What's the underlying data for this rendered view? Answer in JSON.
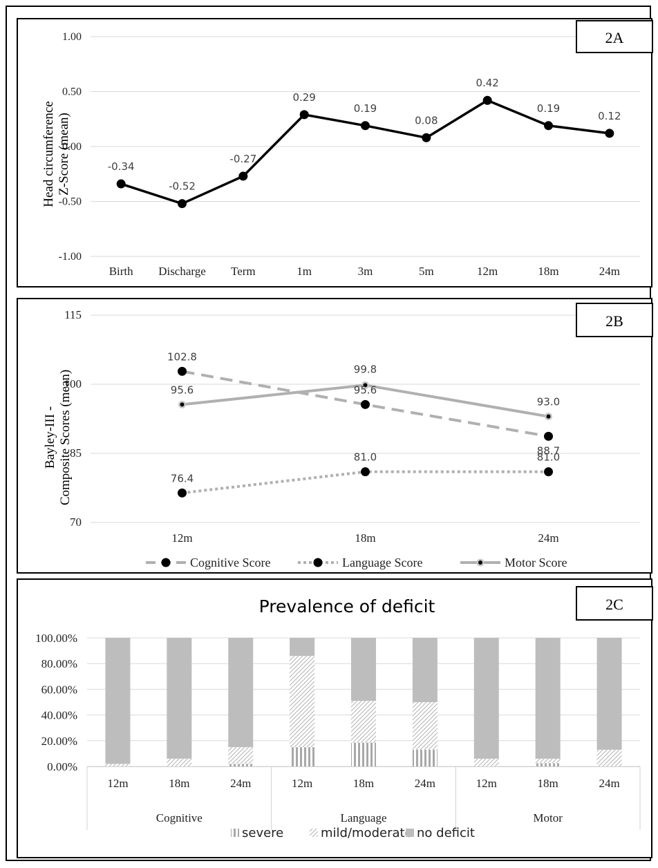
{
  "colors": {
    "lineA": "#000000",
    "cognitive": "#b0b0b0",
    "language": "#b0b0b0",
    "motor": "#b0b0b0",
    "bar_fill": "#bdbdbd",
    "grid": "#d9d9d9"
  },
  "chart_data": [
    {
      "panel_label": "2A",
      "type": "line",
      "categories": [
        "Birth",
        "Discharge",
        "Term",
        "1m",
        "3m",
        "5m",
        "12m",
        "18m",
        "24m"
      ],
      "series": [
        {
          "values": [
            -0.34,
            -0.52,
            -0.27,
            0.29,
            0.19,
            0.08,
            0.42,
            0.19,
            0.12
          ]
        }
      ],
      "value_labels": [
        "-0.34",
        "-0.52",
        "-0.27",
        "0.29",
        "0.19",
        "0.08",
        "0.42",
        "0.19",
        "0.12"
      ],
      "ylabel": [
        "Head circumference",
        "Z-Score (mean)"
      ],
      "ylim": [
        -1.0,
        1.0
      ],
      "yticks": [
        1.0,
        0.5,
        0.0,
        -0.5,
        -1.0
      ],
      "ytick_labels": [
        "1.00",
        "0.50",
        "0.00",
        "-0.50",
        "-1.00"
      ],
      "grid": true
    },
    {
      "panel_label": "2B",
      "type": "line",
      "categories": [
        "12m",
        "18m",
        "24m"
      ],
      "series": [
        {
          "name": "Cognitive Score",
          "values": [
            102.8,
            95.6,
            88.7
          ],
          "labels": [
            "102.8",
            "95.6",
            "88.7"
          ],
          "style": "dashed"
        },
        {
          "name": "Language Score",
          "values": [
            76.4,
            81.0,
            81.0
          ],
          "labels": [
            "76.4",
            "81.0",
            "81.0"
          ],
          "style": "dotted"
        },
        {
          "name": "Motor Score",
          "values": [
            95.6,
            99.8,
            93.0
          ],
          "labels": [
            "95.6",
            "99.8",
            "93.0"
          ],
          "style": "solid"
        }
      ],
      "ylabel": [
        "Bayley-III -",
        "Composite Scores (mean)"
      ],
      "ylim": [
        70,
        115
      ],
      "yticks": [
        115,
        100,
        85,
        70
      ],
      "ytick_labels": [
        "115",
        "100",
        "85",
        "70"
      ],
      "legend": "bottom",
      "grid": true
    },
    {
      "panel_label": "2C",
      "type": "bar",
      "stacked": true,
      "title": "Prevalence of deficit",
      "groups": [
        "Cognitive",
        "Language",
        "Motor"
      ],
      "categories": [
        "12m",
        "18m",
        "24m",
        "12m",
        "18m",
        "24m",
        "12m",
        "18m",
        "24m"
      ],
      "series": [
        {
          "name": "severe",
          "values": [
            0.0,
            0.0,
            2.0,
            15.0,
            18.5,
            13.0,
            0.0,
            2.5,
            0.0
          ]
        },
        {
          "name": "mild/moderate",
          "values": [
            2.0,
            6.0,
            13.0,
            71.0,
            32.5,
            37.0,
            6.0,
            3.5,
            13.0
          ]
        },
        {
          "name": "no deficit",
          "values": [
            98.0,
            94.0,
            85.0,
            14.0,
            49.0,
            50.0,
            94.0,
            94.0,
            87.0
          ]
        }
      ],
      "ylim": [
        0,
        100
      ],
      "yticks": [
        0,
        20,
        40,
        60,
        80,
        100
      ],
      "ytick_labels": [
        "0.00%",
        "20.00%",
        "40.00%",
        "60.00%",
        "80.00%",
        "100.00%"
      ],
      "legend": "bottom",
      "grid": true
    }
  ]
}
